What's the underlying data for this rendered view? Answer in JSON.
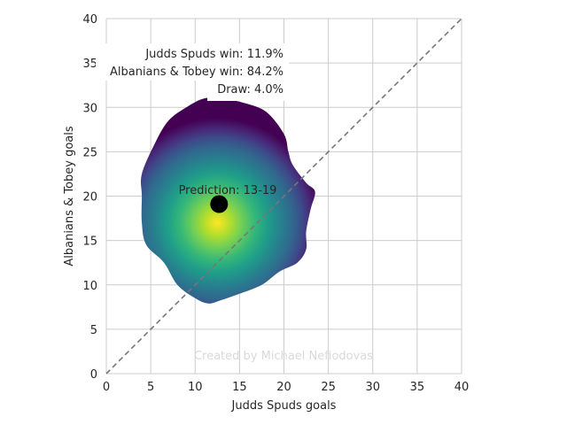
{
  "chart_data": {
    "type": "heatmap",
    "xlabel": "Judds Spuds goals",
    "ylabel": "Albanians & Tobey goals",
    "xlim": [
      0,
      40
    ],
    "ylim": [
      0,
      40
    ],
    "xticks": [
      0,
      5,
      10,
      15,
      20,
      25,
      30,
      35,
      40
    ],
    "yticks": [
      0,
      5,
      10,
      15,
      20,
      25,
      30,
      35,
      40
    ],
    "grid": true,
    "colormap": "viridis",
    "density_peak": {
      "x": 12.5,
      "y": 17
    },
    "density_boundary": [
      [
        13,
        31
      ],
      [
        15.5,
        30.5
      ],
      [
        18,
        29.5
      ],
      [
        20,
        27
      ],
      [
        20.5,
        25
      ],
      [
        21,
        23.5
      ],
      [
        22.5,
        21.5
      ],
      [
        23.5,
        20.5
      ],
      [
        23,
        18.5
      ],
      [
        22.5,
        16
      ],
      [
        22.5,
        14
      ],
      [
        21.5,
        12.5
      ],
      [
        19.5,
        11.5
      ],
      [
        17.5,
        10
      ],
      [
        15,
        9
      ],
      [
        13,
        8.3
      ],
      [
        11.5,
        7.9
      ],
      [
        10,
        8.5
      ],
      [
        8,
        10
      ],
      [
        6.5,
        12.5
      ],
      [
        4.5,
        14.5
      ],
      [
        4,
        17
      ],
      [
        4,
        20
      ],
      [
        4,
        22.5
      ],
      [
        5.5,
        26
      ],
      [
        7,
        28.5
      ],
      [
        9,
        30
      ],
      [
        11,
        31
      ]
    ],
    "diagonal": {
      "from": [
        0,
        0
      ],
      "to": [
        40,
        40
      ],
      "style": "dashed"
    },
    "prediction_point": {
      "x": 12.7,
      "y": 19.1
    },
    "prediction_label": "Prediction: 13-19",
    "probabilities": [
      "Judds Spuds win: 11.9%",
      "Albanians & Tobey win: 84.2%",
      "Draw: 4.0%"
    ],
    "watermark": "Created by Michael Nefiodovas",
    "colors": {
      "grid": "#cccccc",
      "diagonal": "#777777",
      "point": "#000000",
      "viridis": [
        "#440154",
        "#482878",
        "#3e4989",
        "#31688e",
        "#26828e",
        "#1f9e89",
        "#35b779",
        "#6ece58",
        "#b5de2b",
        "#fde725"
      ]
    }
  }
}
